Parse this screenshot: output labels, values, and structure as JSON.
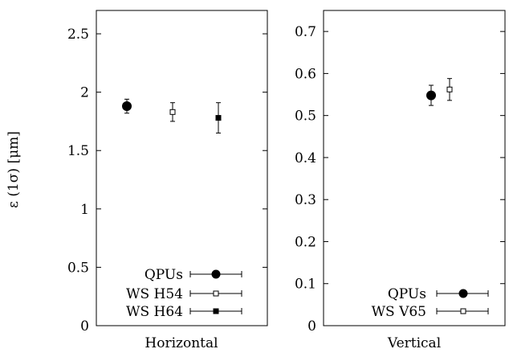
{
  "chart_data": [
    {
      "type": "scatter",
      "xlabel": "Horizontal",
      "ylabel": "ε (1σ) [μm]",
      "ylim": [
        0,
        2.7
      ],
      "yticks": [
        "0",
        "0.5",
        "1",
        "1.5",
        "2",
        "2.5"
      ],
      "ytick_values": [
        0,
        0.5,
        1,
        1.5,
        2,
        2.5
      ],
      "legend_position": "bottom-right",
      "series": [
        {
          "name": "QPUs",
          "marker": "filled-circle",
          "values": [
            {
              "x": 1,
              "y": 1.88,
              "err": 0.06
            }
          ]
        },
        {
          "name": "WS H54",
          "marker": "open-square",
          "values": [
            {
              "x": 2,
              "y": 1.83,
              "err": 0.08
            }
          ]
        },
        {
          "name": "WS H64",
          "marker": "filled-square",
          "values": [
            {
              "x": 3,
              "y": 1.78,
              "err": 0.13
            }
          ]
        }
      ]
    },
    {
      "type": "scatter",
      "xlabel": "Vertical",
      "ylabel": "",
      "ylim": [
        0,
        0.75
      ],
      "yticks": [
        "0",
        "0.1",
        "0.2",
        "0.3",
        "0.4",
        "0.5",
        "0.6",
        "0.7"
      ],
      "ytick_values": [
        0,
        0.1,
        0.2,
        0.3,
        0.4,
        0.5,
        0.6,
        0.7
      ],
      "legend_position": "bottom-right",
      "series": [
        {
          "name": "QPUs",
          "marker": "filled-circle",
          "values": [
            {
              "x": 1,
              "y": 0.548,
              "err": 0.024
            }
          ]
        },
        {
          "name": "WS V65",
          "marker": "open-square",
          "values": [
            {
              "x": 2,
              "y": 0.562,
              "err": 0.026
            }
          ]
        }
      ]
    }
  ]
}
